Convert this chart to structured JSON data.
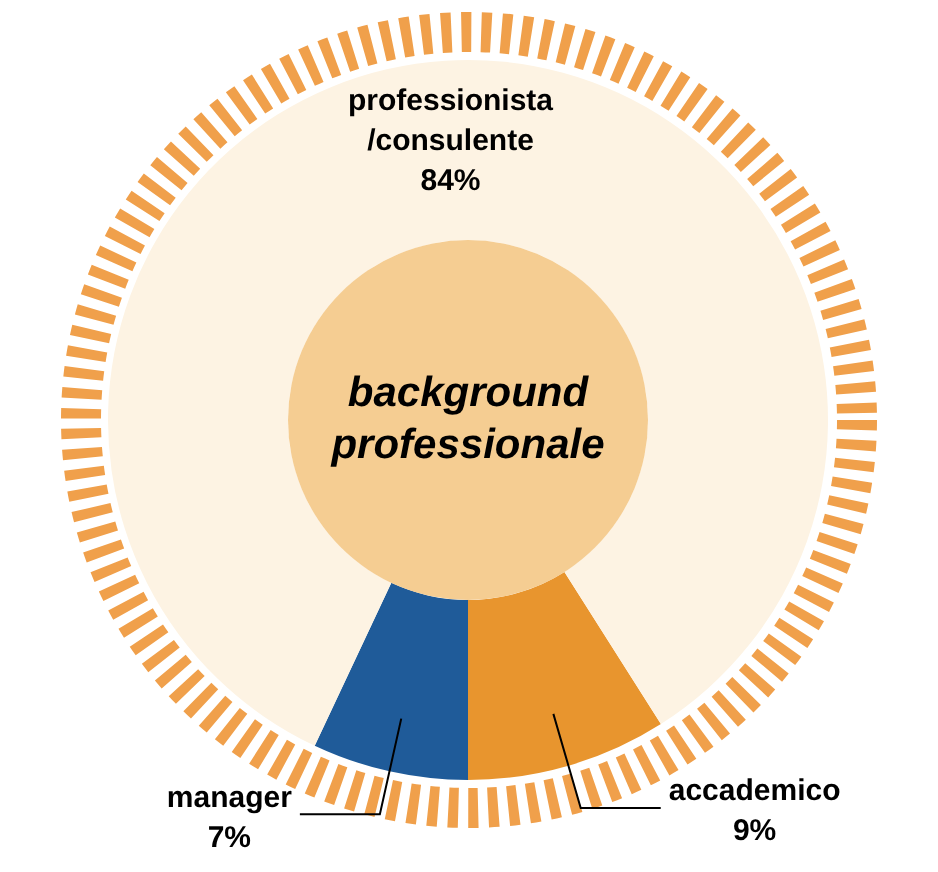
{
  "chart_data": {
    "type": "donut",
    "title": "background professionale",
    "categories": [
      "accademico",
      "manager",
      "professionista /consulente"
    ],
    "values": [
      9,
      7,
      84
    ],
    "colors": [
      "#e8952e",
      "#1f5b99",
      "#fdf3e3"
    ],
    "value_labels": [
      "9%",
      "7%",
      "84%"
    ]
  }
}
